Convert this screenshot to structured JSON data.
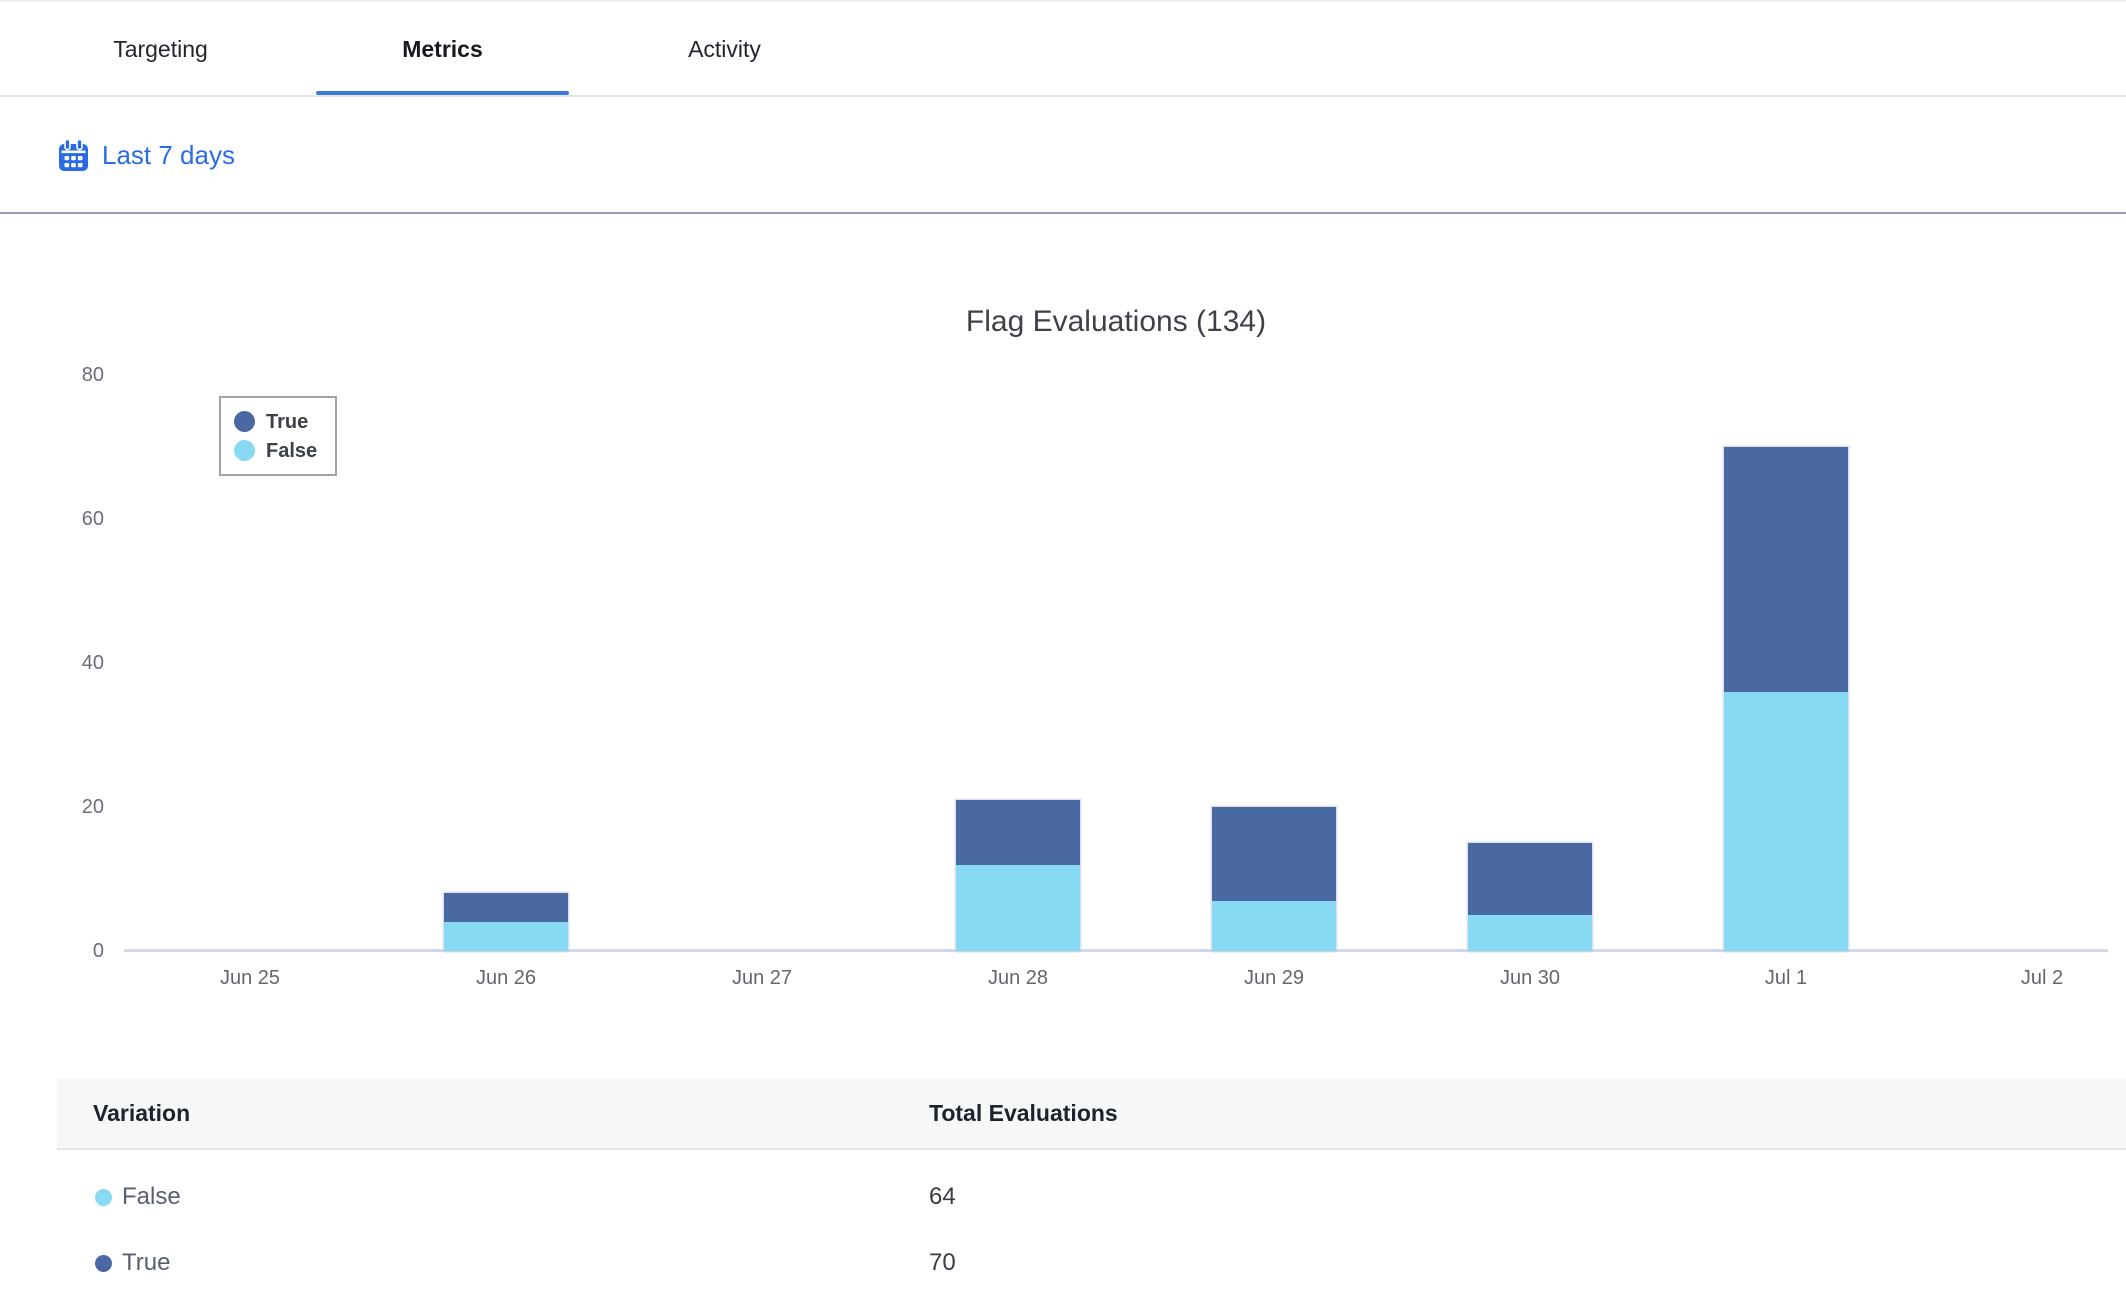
{
  "header": {
    "tabs": [
      {
        "id": "targeting",
        "label": "Targeting",
        "active": false
      },
      {
        "id": "metrics",
        "label": "Metrics",
        "active": true
      },
      {
        "id": "activity",
        "label": "Activity",
        "active": false
      }
    ]
  },
  "filter_bar": {
    "date_range_label": "Last 7 days",
    "accent_color": "#2b6ce2"
  },
  "chart_data": {
    "type": "bar",
    "stacked": true,
    "title": "Flag Evaluations (134)",
    "total_evaluations": 134,
    "categories": [
      "Jun 25",
      "Jun 26",
      "Jun 27",
      "Jun 28",
      "Jun 29",
      "Jun 30",
      "Jul 1",
      "Jul 2"
    ],
    "series": [
      {
        "name": "True",
        "color": "#4a68a1",
        "values": [
          0,
          4,
          0,
          9,
          13,
          10,
          34,
          0
        ],
        "total": 70
      },
      {
        "name": "False",
        "color": "#87daf1",
        "values": [
          0,
          4,
          0,
          12,
          7,
          5,
          36,
          0
        ],
        "total": 64
      }
    ],
    "stack_order_bottom_to_top": [
      "False",
      "True"
    ],
    "ylim": [
      0,
      80
    ],
    "yticks": [
      0,
      20,
      40,
      60,
      80
    ],
    "grid": false,
    "legend": {
      "position": "top-left",
      "entries": [
        "True",
        "False"
      ]
    }
  },
  "table": {
    "columns": [
      "Variation",
      "Total Evaluations"
    ],
    "rows": [
      {
        "variation": "False",
        "dot_color": "#87daf1",
        "total_evaluations": "64"
      },
      {
        "variation": "True",
        "dot_color": "#4a68a1",
        "total_evaluations": "70"
      }
    ]
  }
}
